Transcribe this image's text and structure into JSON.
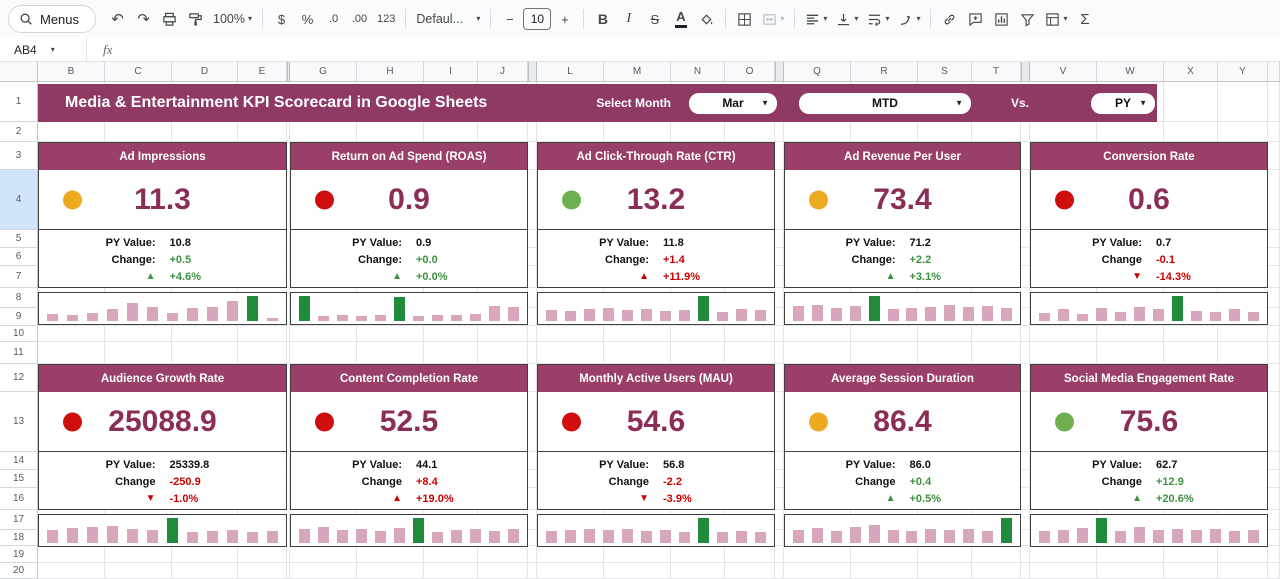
{
  "toolbar": {
    "menus": "Menus",
    "zoom": "100%",
    "currency": "$",
    "percent": "%",
    "decrease_decimal": ".0",
    "increase_decimal": ".00",
    "more_formats": "123",
    "font": "Defaul...",
    "decrease_font_size": "−",
    "font_size": "10",
    "increase_font_size": "+",
    "bold": "B",
    "italic": "I",
    "strikethrough": "S",
    "text_color": "A",
    "functions": "Σ"
  },
  "formula_bar": {
    "name_box": "AB4",
    "fx_label": "fx"
  },
  "grid": {
    "columns": [
      "B",
      "C",
      "D",
      "E",
      "G",
      "H",
      "I",
      "J",
      "L",
      "M",
      "N",
      "O",
      "Q",
      "R",
      "S",
      "T",
      "V",
      "W",
      "X",
      "Y"
    ],
    "rows": [
      "1",
      "2",
      "3",
      "4",
      "5",
      "6",
      "7",
      "8",
      "9",
      "10",
      "11",
      "12",
      "13",
      "14",
      "15",
      "16",
      "17",
      "18",
      "19",
      "20"
    ],
    "selected_row": "4",
    "selected_cell": "AB4"
  },
  "banner": {
    "title": "Media & Entertainment KPI Scorecard in Google Sheets",
    "select_month_label": "Select Month",
    "month": "Mar",
    "period": "MTD",
    "vs_label": "Vs.",
    "comparison": "PY"
  },
  "colors": {
    "banner_bg": "#8e3a62",
    "card_header_bg": "#9a4068",
    "value_text": "#8a2e57",
    "dot_yellow": "#edaa20",
    "dot_red": "#cf0d0d",
    "dot_green": "#6fae51",
    "pos": "#3d9140",
    "neg": "#cc0000",
    "bar_pink": "#d7a6bc",
    "bar_green": "#1f8b3b"
  },
  "cards": [
    {
      "title": "Ad Impressions",
      "dot": "yellow",
      "value": "11.3",
      "py_label": "PY Value:",
      "py_value": "10.8",
      "change_label": "Change:",
      "change_value": "+0.5",
      "change_color": "pos",
      "arrow": "up",
      "pct": "+4.6%",
      "pct_color": "pos",
      "sparkline": [
        28,
        22,
        30,
        48,
        72,
        55,
        30,
        50,
        55,
        78,
        100,
        12
      ],
      "green_bars": [
        10
      ]
    },
    {
      "title": "Return on Ad Spend (ROAS)",
      "dot": "red",
      "value": "0.9",
      "py_label": "PY Value:",
      "py_value": "0.9",
      "change_label": "Change:",
      "change_value": "+0.0",
      "change_color": "pos",
      "arrow": "up",
      "pct": "+0.0%",
      "pct_color": "pos",
      "sparkline": [
        100,
        20,
        22,
        18,
        25,
        95,
        20,
        25,
        25,
        28,
        60,
        55
      ],
      "green_bars": [
        0,
        5
      ]
    },
    {
      "title": "Ad Click-Through Rate (CTR)",
      "dot": "green",
      "value": "13.2",
      "py_label": "PY Value:",
      "py_value": "11.8",
      "change_label": "Change:",
      "change_value": "+1.4",
      "change_color": "neg",
      "arrow": "up",
      "pct": "+11.9%",
      "pct_color": "neg",
      "sparkline": [
        45,
        38,
        48,
        52,
        42,
        46,
        40,
        44,
        100,
        36,
        46,
        42
      ],
      "green_bars": [
        8
      ]
    },
    {
      "title": "Ad Revenue Per User",
      "dot": "yellow",
      "value": "73.4",
      "py_label": "PY Value:",
      "py_value": "71.2",
      "change_label": "Change:",
      "change_value": "+2.2",
      "change_color": "pos",
      "arrow": "up",
      "pct": "+3.1%",
      "pct_color": "pos",
      "sparkline": [
        58,
        62,
        52,
        60,
        100,
        46,
        52,
        56,
        62,
        54,
        60,
        52
      ],
      "green_bars": [
        4
      ]
    },
    {
      "title": "Conversion Rate",
      "dot": "red",
      "value": "0.6",
      "py_label": "PY Value:",
      "py_value": "0.7",
      "change_label": "Change",
      "change_value": "-0.1",
      "change_color": "neg",
      "arrow": "down",
      "pct": "-14.3%",
      "pct_color": "neg",
      "sparkline": [
        32,
        48,
        26,
        52,
        36,
        56,
        46,
        100,
        40,
        34,
        46,
        36
      ],
      "green_bars": [
        7
      ]
    },
    {
      "title": "Audience Growth Rate",
      "dot": "red",
      "value": "25088.9",
      "py_label": "PY Value:",
      "py_value": "25339.8",
      "change_label": "Change",
      "change_value": "-250.9",
      "change_color": "neg",
      "arrow": "down",
      "pct": "-1.0%",
      "pct_color": "neg",
      "sparkline": [
        52,
        58,
        62,
        66,
        56,
        50,
        100,
        44,
        48,
        52,
        42,
        46
      ],
      "green_bars": [
        6
      ]
    },
    {
      "title": "Content Completion Rate",
      "dot": "red",
      "value": "52.5",
      "py_label": "PY Value:",
      "py_value": "44.1",
      "change_label": "Change",
      "change_value": "+8.4",
      "change_color": "neg",
      "arrow": "up",
      "pct": "+19.0%",
      "pct_color": "neg",
      "sparkline": [
        56,
        62,
        52,
        56,
        46,
        60,
        100,
        42,
        52,
        56,
        46,
        54
      ],
      "green_bars": [
        6
      ]
    },
    {
      "title": "Monthly Active Users (MAU)",
      "dot": "red",
      "value": "54.6",
      "py_label": "PY Value:",
      "py_value": "56.8",
      "change_label": "Change",
      "change_value": "-2.2",
      "change_color": "neg",
      "arrow": "down",
      "pct": "-3.9%",
      "pct_color": "neg",
      "sparkline": [
        46,
        52,
        56,
        50,
        54,
        46,
        52,
        44,
        100,
        42,
        46,
        44
      ],
      "green_bars": [
        8
      ]
    },
    {
      "title": "Average Session Duration",
      "dot": "yellow",
      "value": "86.4",
      "py_label": "PY Value:",
      "py_value": "86.0",
      "change_label": "Change",
      "change_value": "+0.4",
      "change_color": "pos",
      "arrow": "up",
      "pct": "+0.5%",
      "pct_color": "pos",
      "sparkline": [
        52,
        58,
        46,
        62,
        72,
        52,
        46,
        56,
        50,
        54,
        46,
        100
      ],
      "green_bars": [
        11
      ]
    },
    {
      "title": "Social Media Engagement Rate",
      "dot": "green",
      "value": "75.6",
      "py_label": "PY Value:",
      "py_value": "62.7",
      "change_label": "Change",
      "change_value": "+12.9",
      "change_color": "pos",
      "arrow": "up",
      "pct": "+20.6%",
      "pct_color": "pos",
      "sparkline": [
        46,
        52,
        58,
        100,
        46,
        62,
        52,
        56,
        50,
        54,
        46,
        52
      ],
      "green_bars": [
        3
      ]
    }
  ]
}
